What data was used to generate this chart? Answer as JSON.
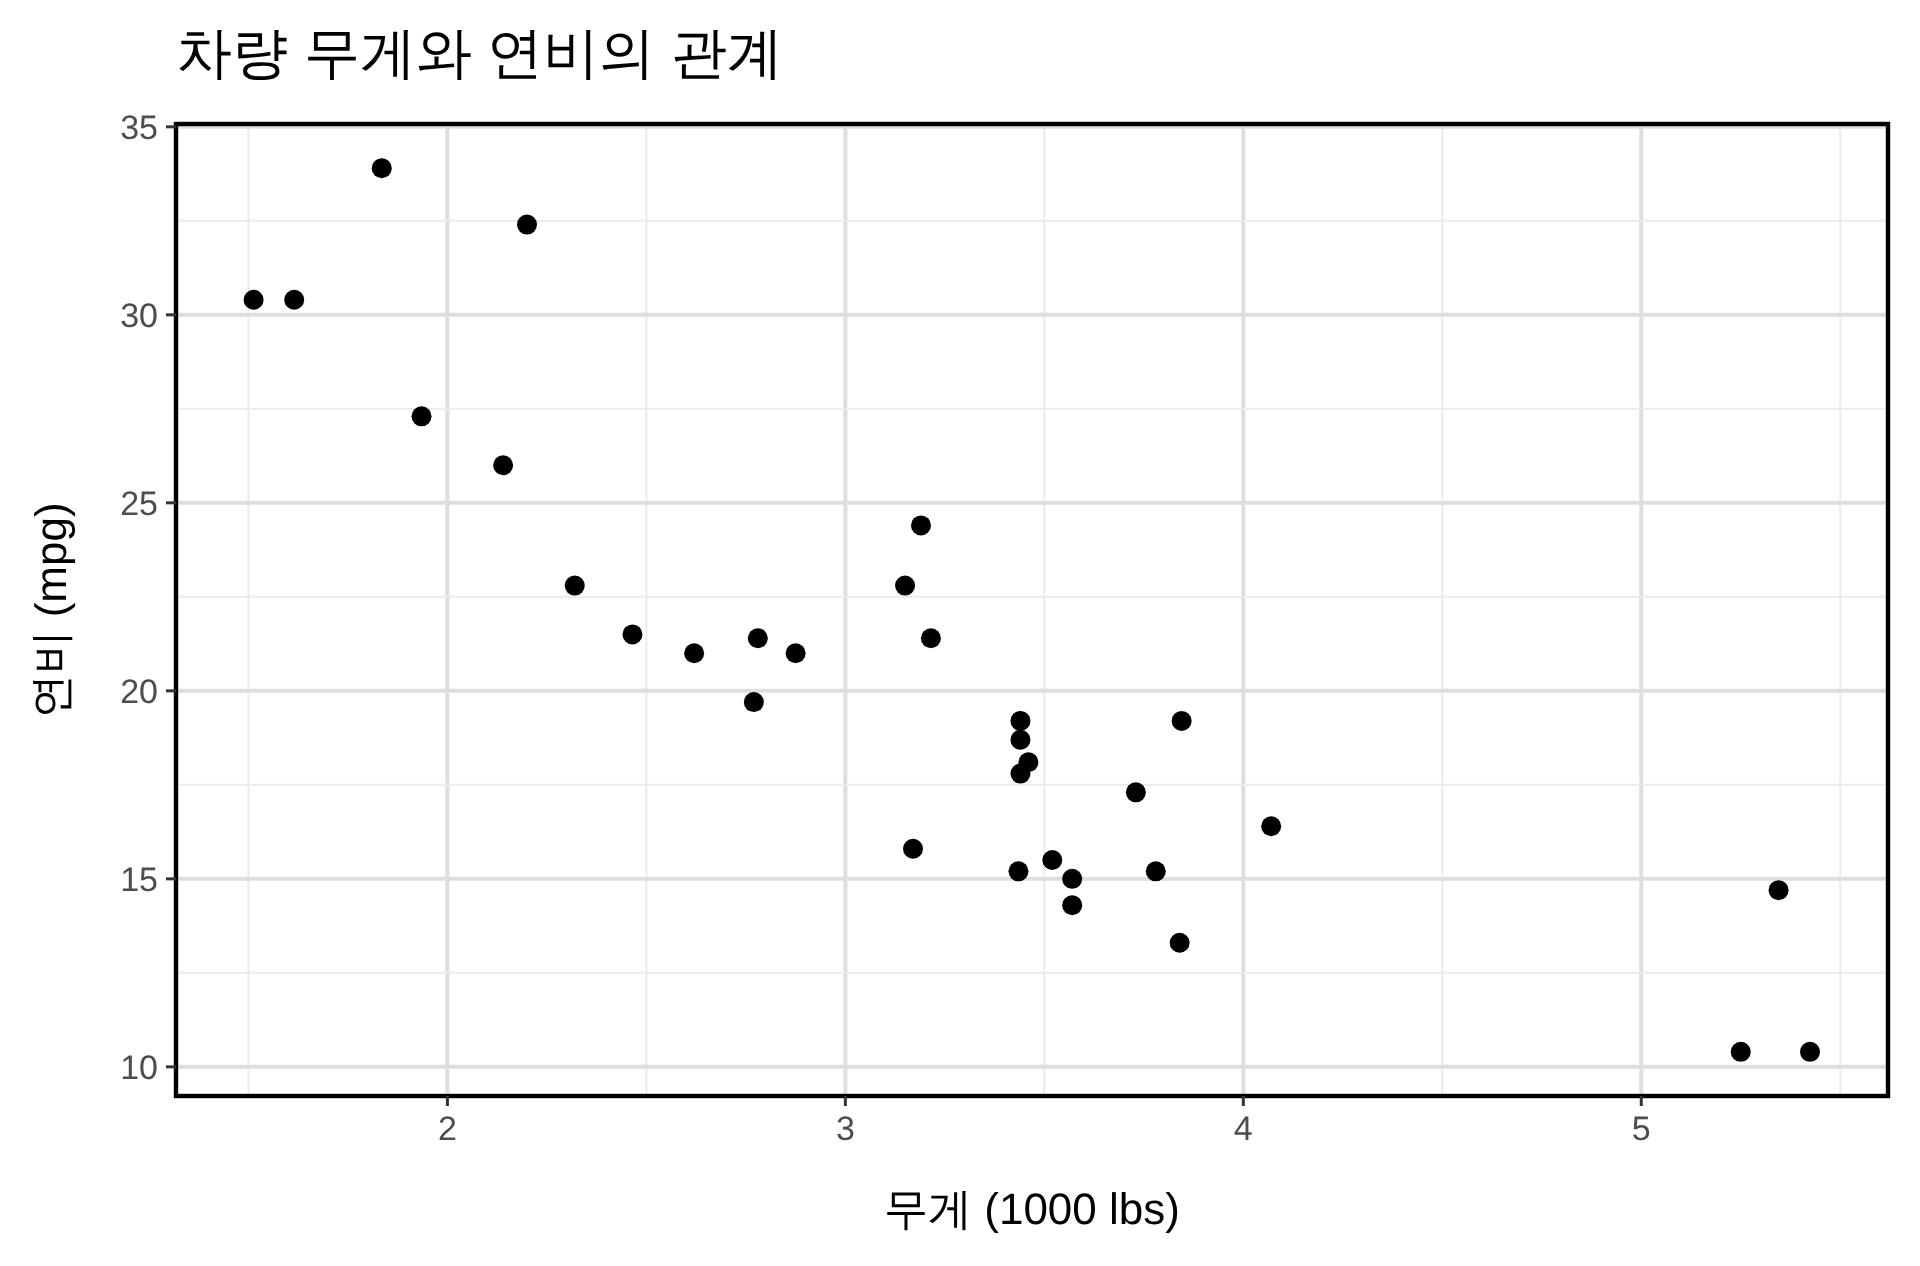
{
  "chart_data": {
    "type": "scatter",
    "title": "차량 무게와 연비의 관계",
    "xlabel": "무게 (1000 lbs)",
    "ylabel": "연비 (mpg)",
    "x": [
      2.62,
      2.875,
      2.32,
      3.215,
      3.44,
      3.46,
      3.57,
      3.19,
      3.15,
      3.44,
      3.44,
      4.07,
      3.73,
      3.78,
      5.25,
      5.424,
      5.345,
      2.2,
      1.615,
      1.835,
      2.465,
      3.52,
      3.435,
      3.84,
      3.845,
      1.935,
      2.14,
      1.513,
      3.17,
      2.77,
      3.57,
      2.78
    ],
    "values": [
      21.0,
      21.0,
      22.8,
      21.4,
      18.7,
      18.1,
      14.3,
      24.4,
      22.8,
      19.2,
      17.8,
      16.4,
      17.3,
      15.2,
      10.4,
      10.4,
      14.7,
      32.4,
      30.4,
      33.9,
      21.5,
      15.5,
      15.2,
      13.3,
      19.2,
      27.3,
      26.0,
      30.4,
      15.8,
      19.7,
      15.0,
      21.4
    ],
    "color": "#000000",
    "marker": "circle",
    "grid": true,
    "xlim": [
      1.318,
      5.62
    ],
    "ylim": [
      9.225,
      35.075
    ],
    "xticks": [
      2,
      3,
      4,
      5
    ],
    "yticks": [
      10,
      15,
      20,
      25,
      30,
      35
    ]
  }
}
